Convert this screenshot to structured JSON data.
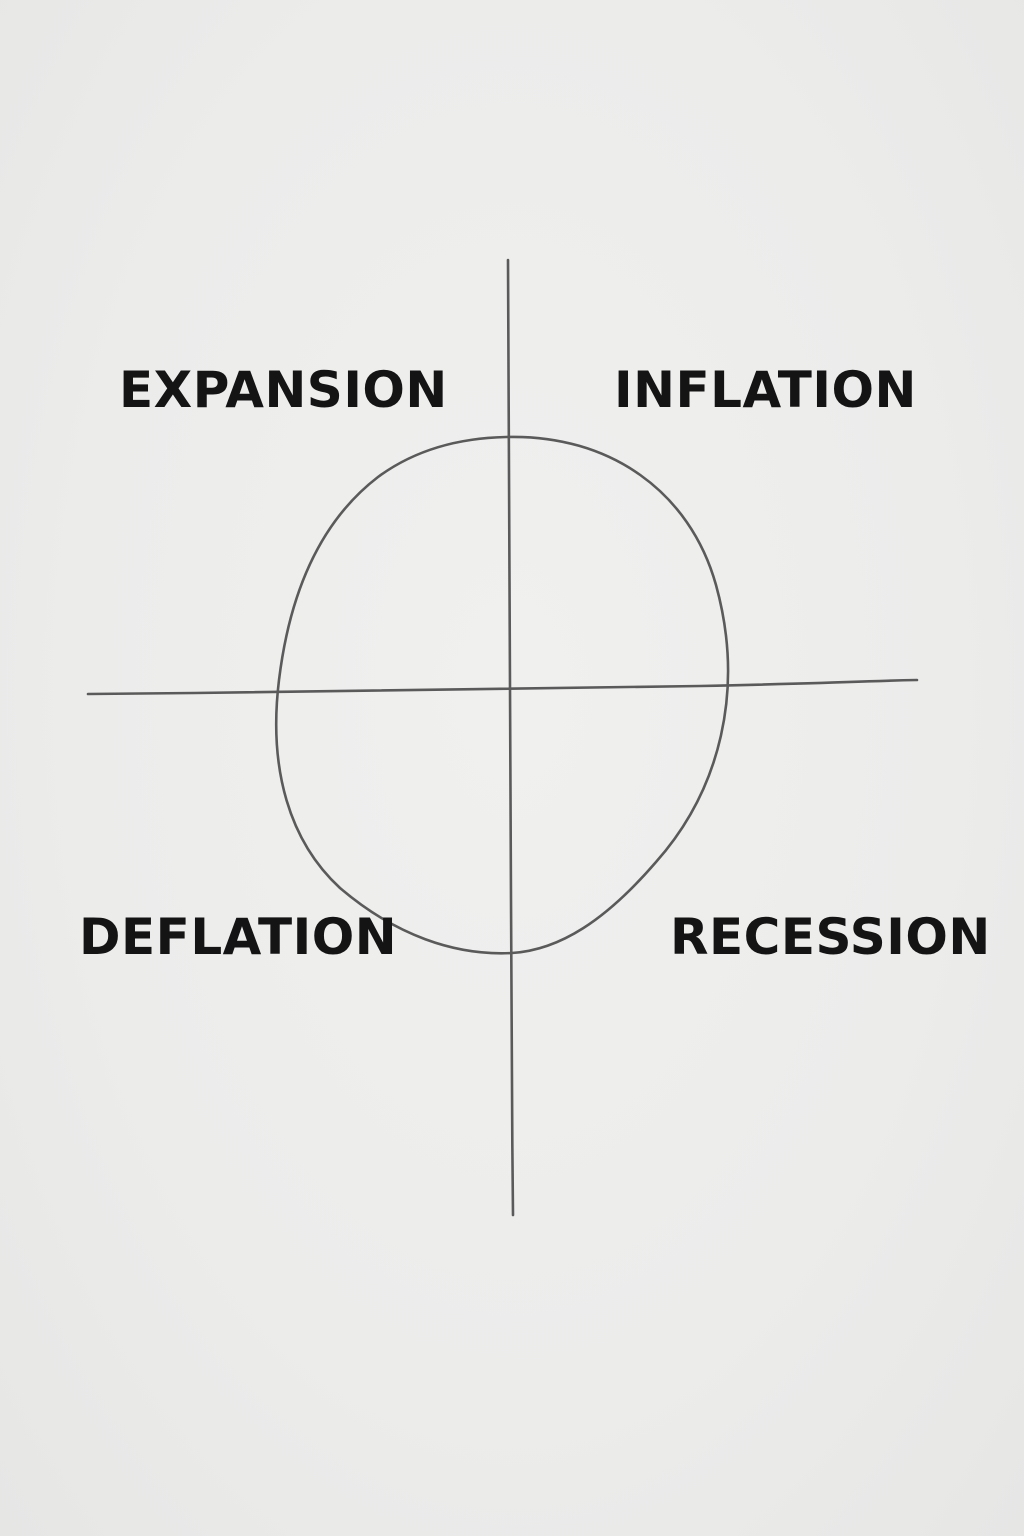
{
  "quadrants": {
    "top_left": "EXPANSION",
    "top_right": "INFLATION",
    "bottom_left": "DEFLATION",
    "bottom_right": "RECESSION"
  },
  "colors": {
    "background": "#ededed",
    "pencil": "#5a5a5a",
    "text": "#141414"
  }
}
